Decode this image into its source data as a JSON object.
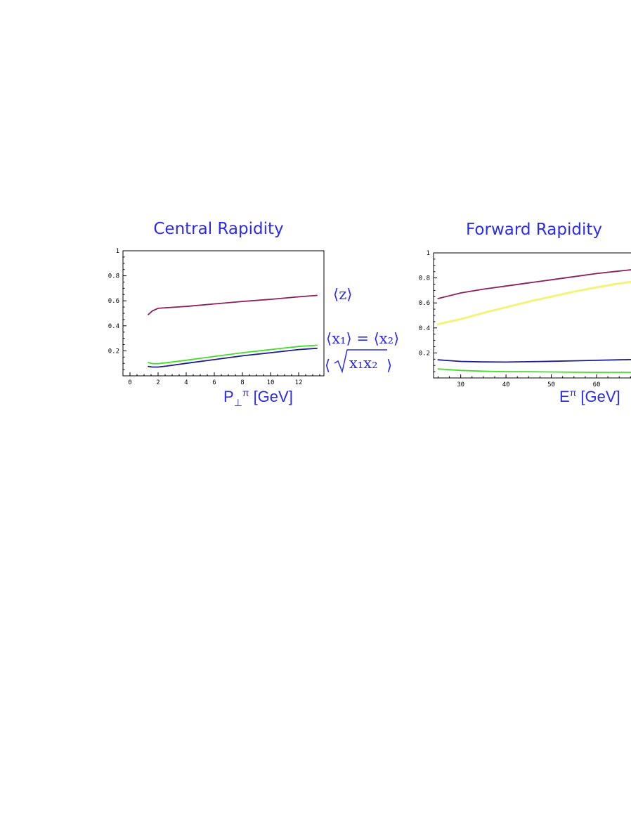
{
  "chart_data": [
    {
      "type": "line",
      "title": "Central Rapidity",
      "xlabel_base": "P",
      "xlabel_sub": "⊥",
      "xlabel_sup": "π",
      "xlabel_unit": "[GeV]",
      "ylabel": "",
      "xlim": [
        -0.5,
        13.8
      ],
      "ylim": [
        0.0,
        1.0
      ],
      "xticks": [
        0,
        2,
        4,
        6,
        8,
        10,
        12
      ],
      "xtick_labels": [
        "0",
        "2",
        "4",
        "6",
        "8",
        "10",
        "12"
      ],
      "yticks": [
        0.2,
        0.4,
        0.6,
        0.8,
        1.0
      ],
      "ytick_labels": [
        "0.2",
        "0.4",
        "0.6",
        "0.8",
        "1"
      ],
      "grid": false,
      "series": [
        {
          "color": "#8b1f5e",
          "x": [
            1.3,
            1.6,
            2.0,
            2.6,
            4.0,
            6.0,
            8.0,
            10.0,
            12.0,
            13.3
          ],
          "y": [
            0.49,
            0.52,
            0.54,
            0.545,
            0.555,
            0.575,
            0.595,
            0.612,
            0.632,
            0.643
          ]
        },
        {
          "color": "#44dd2a",
          "x": [
            1.3,
            1.6,
            2.0,
            2.6,
            4.0,
            6.0,
            8.0,
            10.0,
            12.0,
            13.3
          ],
          "y": [
            0.105,
            0.098,
            0.097,
            0.105,
            0.125,
            0.155,
            0.185,
            0.21,
            0.235,
            0.245
          ]
        },
        {
          "color": "#1c1c8a",
          "x": [
            1.3,
            1.6,
            2.0,
            2.6,
            4.0,
            6.0,
            8.0,
            10.0,
            12.0,
            13.3
          ],
          "y": [
            0.075,
            0.07,
            0.07,
            0.078,
            0.1,
            0.13,
            0.16,
            0.185,
            0.21,
            0.22
          ]
        }
      ],
      "annotations": {
        "z": "⟨z⟩",
        "x1x2": "⟨x₁⟩ = ⟨x₂⟩",
        "sqrt_open": "⟨",
        "sqrt_body": "x₁x₂",
        "sqrt_close": "⟩"
      }
    },
    {
      "type": "line",
      "title": "Forward Rapidity",
      "xlabel_base": "E",
      "xlabel_sup": "π",
      "xlabel_unit": "[GeV]",
      "ylabel": "",
      "xlim": [
        24.0,
        69.0
      ],
      "ylim": [
        0.0,
        1.0
      ],
      "xticks": [
        30,
        40,
        50,
        60
      ],
      "xtick_labels": [
        "30",
        "40",
        "50",
        "60"
      ],
      "yticks": [
        0.2,
        0.4,
        0.6,
        0.8,
        1.0
      ],
      "ytick_labels": [
        "0.2",
        "0.4",
        "0.6",
        "0.8",
        "1"
      ],
      "grid": false,
      "series": [
        {
          "color": "#8b1f5e",
          "x": [
            25,
            30,
            35,
            40,
            45,
            50,
            55,
            60,
            65,
            69
          ],
          "y": [
            0.635,
            0.68,
            0.71,
            0.735,
            0.76,
            0.785,
            0.81,
            0.835,
            0.855,
            0.87
          ]
        },
        {
          "color": "#f3f37a",
          "x": [
            25,
            30,
            35,
            40,
            45,
            50,
            55,
            60,
            65,
            69
          ],
          "y": [
            0.43,
            0.47,
            0.52,
            0.565,
            0.61,
            0.65,
            0.69,
            0.725,
            0.755,
            0.775
          ]
        },
        {
          "color": "#1c1c8a",
          "x": [
            25,
            30,
            35,
            40,
            45,
            50,
            55,
            60,
            65,
            69
          ],
          "y": [
            0.145,
            0.132,
            0.128,
            0.127,
            0.13,
            0.133,
            0.137,
            0.141,
            0.145,
            0.148
          ]
        },
        {
          "color": "#44dd2a",
          "x": [
            25,
            30,
            35,
            40,
            45,
            50,
            55,
            60,
            65,
            69
          ],
          "y": [
            0.072,
            0.06,
            0.054,
            0.05,
            0.05,
            0.048,
            0.046,
            0.045,
            0.045,
            0.045
          ]
        }
      ]
    }
  ]
}
